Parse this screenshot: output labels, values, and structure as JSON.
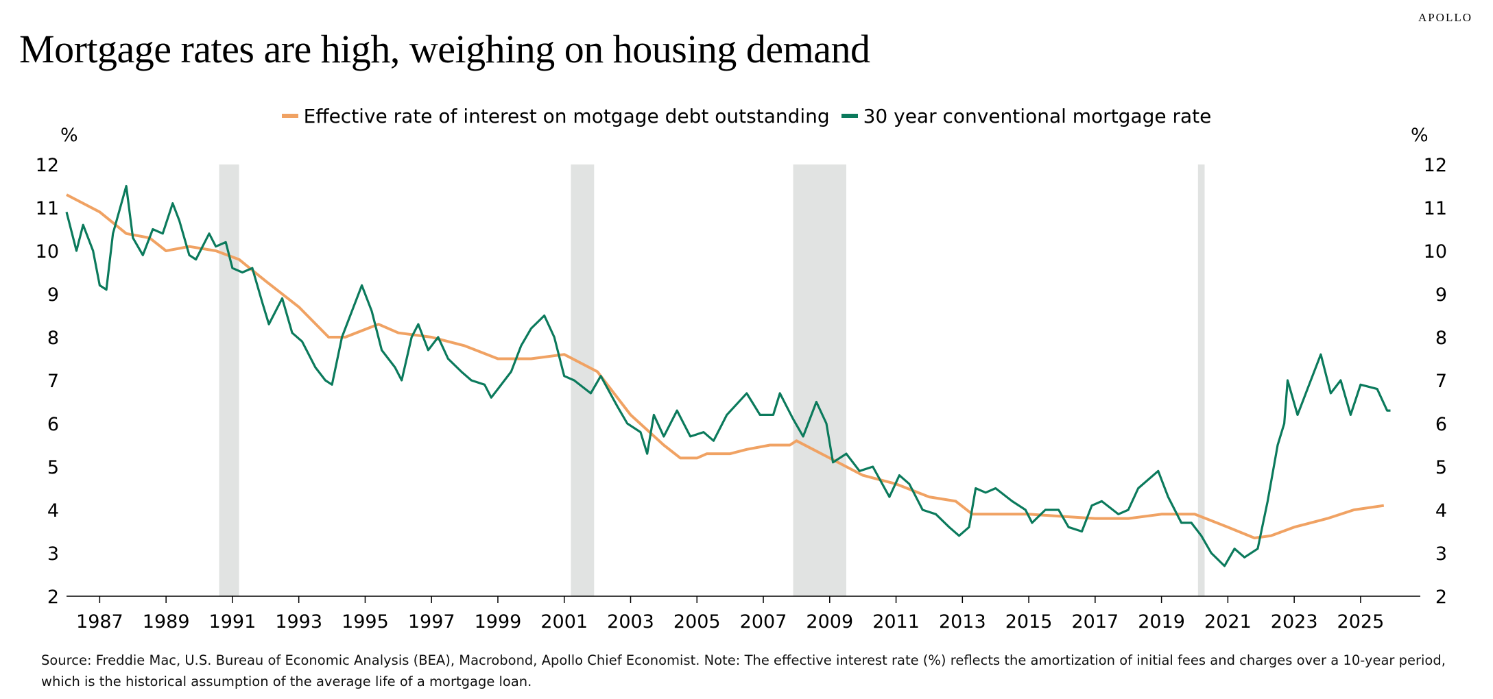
{
  "brand": "APOLLO",
  "title": "Mortgage rates are high, weighing on housing demand",
  "footnote": "Source: Freddie Mac, U.S. Bureau of Economic Analysis (BEA), Macrobond, Apollo Chief Economist. Note: The effective interest rate (%) reflects the amortization of initial fees and charges over a 10-year period, which is the historical assumption of the average life of a mortgage loan.",
  "chart_data": {
    "type": "line",
    "title": "Mortgage rates are high, weighing on housing demand",
    "ylabel_left": "%",
    "ylabel_right": "%",
    "xlim": [
      1986.0,
      2026.8
    ],
    "ylim": [
      2,
      12
    ],
    "yticks": [
      "2",
      "3",
      "4",
      "5",
      "6",
      "7",
      "8",
      "9",
      "10",
      "11",
      "12"
    ],
    "xticks": [
      "1987",
      "1989",
      "1991",
      "1993",
      "1995",
      "1997",
      "1999",
      "2001",
      "2003",
      "2005",
      "2007",
      "2009",
      "2011",
      "2013",
      "2015",
      "2017",
      "2019",
      "2021",
      "2023",
      "2025"
    ],
    "grid": false,
    "legend_position": "top",
    "recessions": [
      [
        1990.6,
        1991.2
      ],
      [
        2001.2,
        2001.9
      ],
      [
        2007.9,
        2009.5
      ],
      [
        2020.1,
        2020.3
      ]
    ],
    "recession_color": "#e1e3e2",
    "series": [
      {
        "name": "Effective rate of interest on motgage debt outstanding",
        "color": "#f0a263",
        "x": [
          1986.0,
          1987.0,
          1987.8,
          1988.5,
          1989.0,
          1989.7,
          1990.5,
          1991.2,
          1992.0,
          1993.0,
          1993.9,
          1994.4,
          1995.4,
          1996.0,
          1997.0,
          1998.0,
          1999.0,
          2000.0,
          2001.0,
          2002.0,
          2003.0,
          2004.0,
          2004.5,
          2005.0,
          2005.3,
          2006.0,
          2006.5,
          2007.2,
          2007.8,
          2008.0,
          2008.5,
          2009.0,
          2010.0,
          2011.0,
          2012.0,
          2012.8,
          2013.3,
          2014.0,
          2015.0,
          2016.0,
          2017.0,
          2018.0,
          2019.0,
          2020.0,
          2021.0,
          2021.8,
          2022.3,
          2023.0,
          2024.0,
          2024.8,
          2025.7
        ],
        "y": [
          11.3,
          10.9,
          10.4,
          10.3,
          10.0,
          10.1,
          10.0,
          9.8,
          9.3,
          8.7,
          8.0,
          8.0,
          8.3,
          8.1,
          8.0,
          7.8,
          7.5,
          7.5,
          7.6,
          7.2,
          6.2,
          5.5,
          5.2,
          5.2,
          5.3,
          5.3,
          5.4,
          5.5,
          5.5,
          5.6,
          5.4,
          5.2,
          4.8,
          4.6,
          4.3,
          4.2,
          3.9,
          3.9,
          3.9,
          3.85,
          3.8,
          3.8,
          3.9,
          3.9,
          3.6,
          3.35,
          3.4,
          3.6,
          3.8,
          4.0,
          4.1
        ]
      },
      {
        "name": "30 year conventional mortgage rate",
        "color": "#0b7a5c",
        "x": [
          1986.0,
          1986.3,
          1986.5,
          1986.8,
          1987.0,
          1987.2,
          1987.4,
          1987.8,
          1988.0,
          1988.3,
          1988.6,
          1988.9,
          1989.2,
          1989.4,
          1989.7,
          1989.9,
          1990.3,
          1990.5,
          1990.8,
          1991.0,
          1991.3,
          1991.6,
          1991.9,
          1992.1,
          1992.5,
          1992.8,
          1993.1,
          1993.5,
          1993.8,
          1994.0,
          1994.3,
          1994.6,
          1994.9,
          1995.2,
          1995.5,
          1995.9,
          1996.1,
          1996.4,
          1996.6,
          1996.9,
          1997.2,
          1997.5,
          1997.9,
          1998.2,
          1998.6,
          1998.8,
          1999.0,
          1999.4,
          1999.7,
          2000.0,
          2000.4,
          2000.7,
          2001.0,
          2001.3,
          2001.8,
          2002.1,
          2002.6,
          2002.9,
          2003.3,
          2003.5,
          2003.7,
          2004.0,
          2004.4,
          2004.8,
          2005.2,
          2005.5,
          2005.9,
          2006.5,
          2006.9,
          2007.3,
          2007.5,
          2007.9,
          2008.2,
          2008.6,
          2008.9,
          2009.1,
          2009.5,
          2009.9,
          2010.3,
          2010.8,
          2011.1,
          2011.4,
          2011.8,
          2012.2,
          2012.6,
          2012.9,
          2013.2,
          2013.4,
          2013.7,
          2014.0,
          2014.5,
          2014.9,
          2015.1,
          2015.5,
          2015.9,
          2016.2,
          2016.6,
          2016.9,
          2017.2,
          2017.7,
          2018.0,
          2018.3,
          2018.9,
          2019.2,
          2019.6,
          2019.9,
          2020.2,
          2020.5,
          2020.9,
          2021.2,
          2021.5,
          2021.9,
          2022.2,
          2022.5,
          2022.7,
          2022.8,
          2023.1,
          2023.4,
          2023.8,
          2024.1,
          2024.4,
          2024.7,
          2025.0,
          2025.5,
          2025.8,
          2025.9
        ],
        "y": [
          10.9,
          10.0,
          10.6,
          10.0,
          9.2,
          9.1,
          10.4,
          11.5,
          10.3,
          9.9,
          10.5,
          10.4,
          11.1,
          10.7,
          9.9,
          9.8,
          10.4,
          10.1,
          10.2,
          9.6,
          9.5,
          9.6,
          8.8,
          8.3,
          8.9,
          8.1,
          7.9,
          7.3,
          7.0,
          6.9,
          8.0,
          8.6,
          9.2,
          8.6,
          7.7,
          7.3,
          7.0,
          8.0,
          8.3,
          7.7,
          8.0,
          7.5,
          7.2,
          7.0,
          6.9,
          6.6,
          6.8,
          7.2,
          7.8,
          8.2,
          8.5,
          8.0,
          7.1,
          7.0,
          6.7,
          7.1,
          6.4,
          6.0,
          5.8,
          5.3,
          6.2,
          5.7,
          6.3,
          5.7,
          5.8,
          5.6,
          6.2,
          6.7,
          6.2,
          6.2,
          6.7,
          6.1,
          5.7,
          6.5,
          6.0,
          5.1,
          5.3,
          4.9,
          5.0,
          4.3,
          4.8,
          4.6,
          4.0,
          3.9,
          3.6,
          3.4,
          3.6,
          4.5,
          4.4,
          4.5,
          4.2,
          4.0,
          3.7,
          4.0,
          4.0,
          3.6,
          3.5,
          4.1,
          4.2,
          3.9,
          4.0,
          4.5,
          4.9,
          4.3,
          3.7,
          3.7,
          3.4,
          3.0,
          2.7,
          3.1,
          2.9,
          3.1,
          4.2,
          5.5,
          6.0,
          7.0,
          6.2,
          6.8,
          7.6,
          6.7,
          7.0,
          6.2,
          6.9,
          6.8,
          6.3,
          6.3
        ]
      }
    ]
  }
}
